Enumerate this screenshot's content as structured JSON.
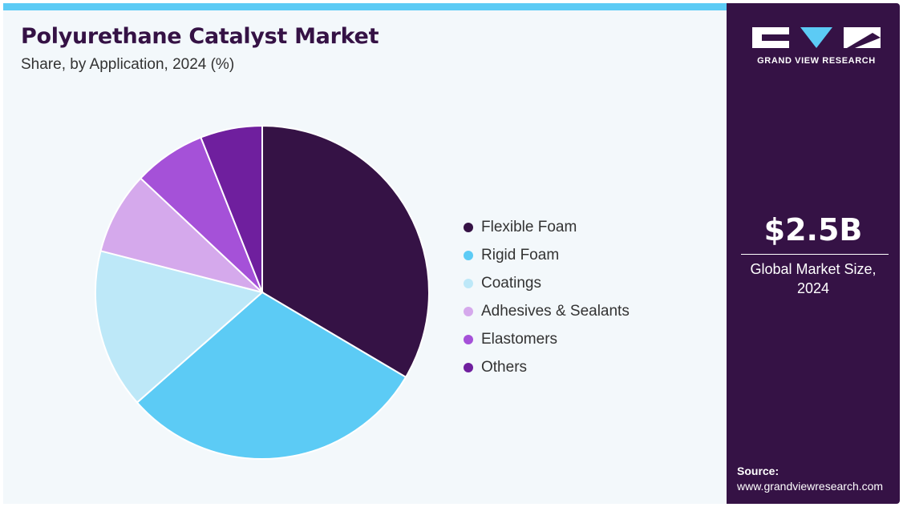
{
  "header": {
    "title": "Polyurethane Catalyst Market",
    "subtitle": "Share, by Application, 2024 (%)"
  },
  "brand": {
    "logo_text": "GRAND VIEW RESEARCH"
  },
  "market": {
    "value": "$2.5B",
    "label_line1": "Global Market Size,",
    "label_line2": "2024"
  },
  "source": {
    "label": "Source:",
    "url": "www.grandviewresearch.com"
  },
  "colors": {
    "accent": "#5ccbf5",
    "panel": "#351245"
  },
  "chart_data": {
    "type": "pie",
    "title": "Polyurethane Catalyst Market",
    "subtitle": "Share, by Application, 2024 (%)",
    "legend_position": "right",
    "categories": [
      "Flexible Foam",
      "Rigid Foam",
      "Coatings",
      "Adhesives & Sealants",
      "Elastomers",
      "Others"
    ],
    "values": [
      33.5,
      30.0,
      15.5,
      8.0,
      7.0,
      6.0
    ],
    "colors": [
      "#351245",
      "#5ccbf5",
      "#bde8f8",
      "#d5a9ec",
      "#a551d8",
      "#6f1f9e"
    ]
  }
}
